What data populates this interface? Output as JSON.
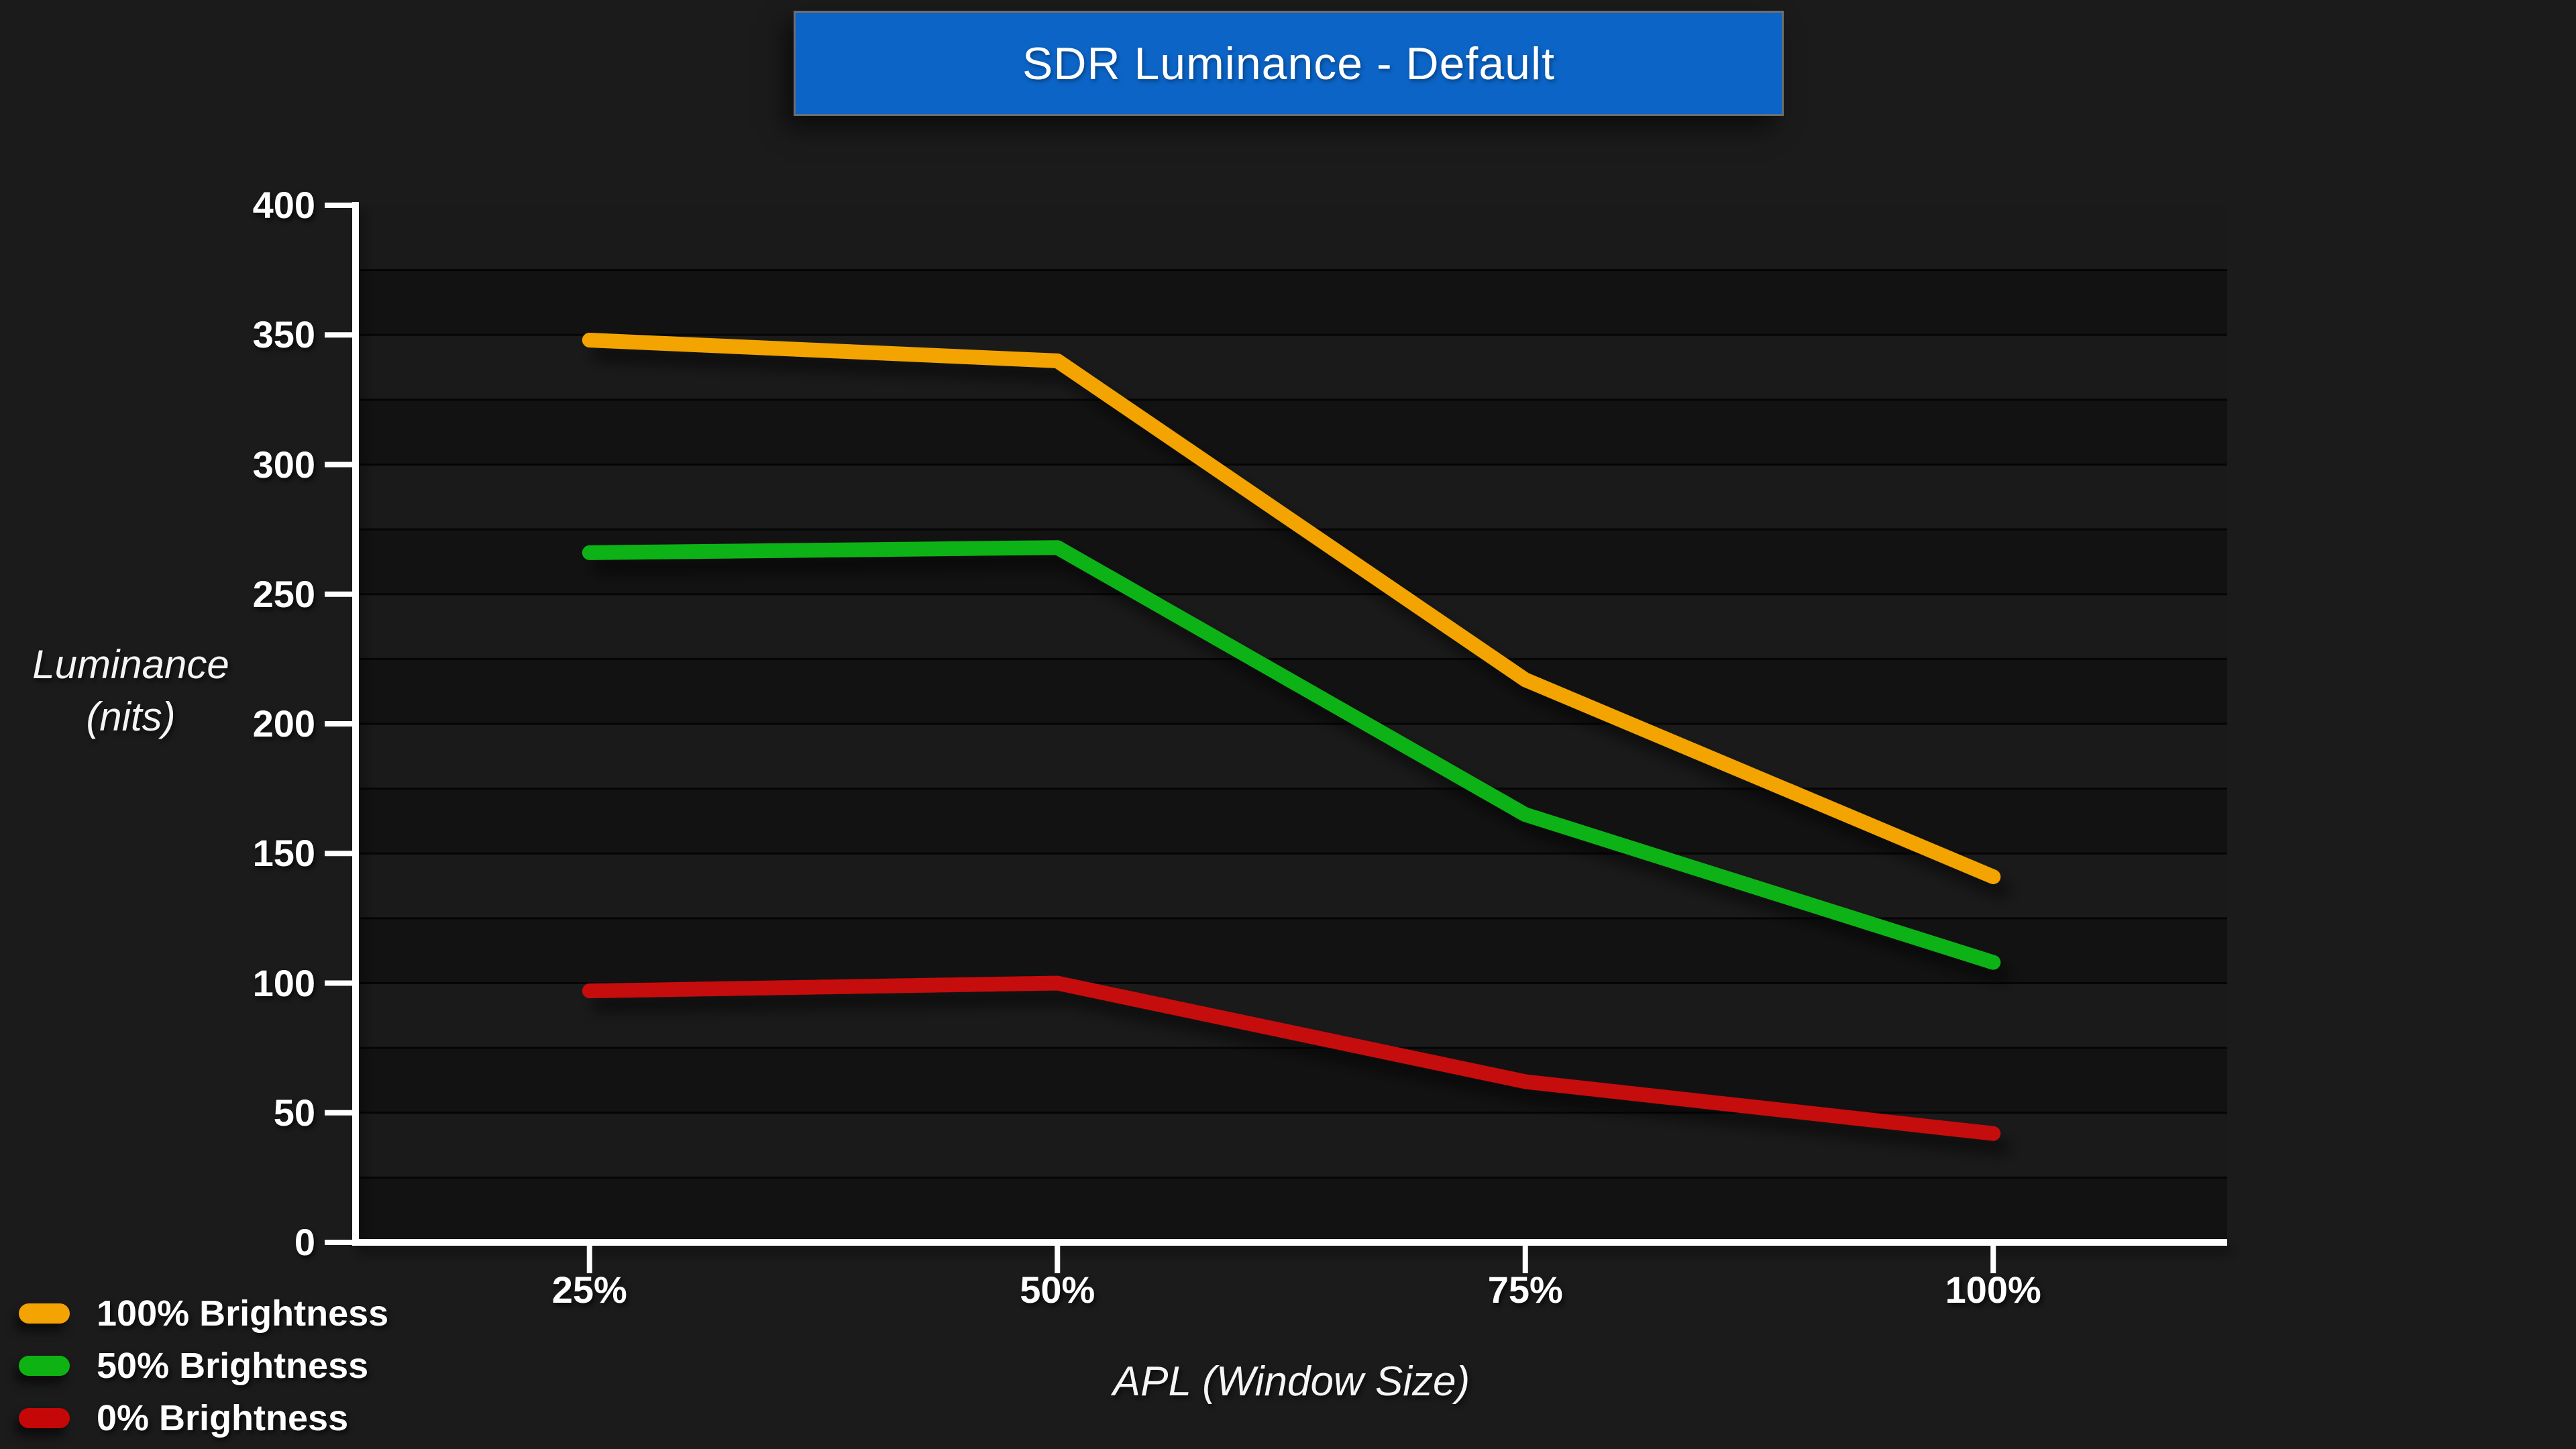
{
  "page": {
    "background": "#1B1B1B"
  },
  "title_banner": {
    "text": "SDR Luminance - Default",
    "background": "#0B64C6",
    "border_color": "#6E6E6E",
    "text_color": "#FFFFFF"
  },
  "chart_data": {
    "type": "line",
    "title": "SDR Luminance - Default",
    "categories": [
      "25%",
      "50%",
      "75%",
      "100%"
    ],
    "series": [
      {
        "name": "100% Brightness",
        "color": "#F3A403",
        "values": [
          348,
          340,
          217,
          141
        ]
      },
      {
        "name": "50% Brightness",
        "color": "#0EB212",
        "values": [
          266,
          268,
          165,
          108
        ]
      },
      {
        "name": "0% Brightness",
        "color": "#C50707",
        "values": [
          97,
          100,
          62,
          42
        ]
      }
    ],
    "xlabel": "APL (Window Size)",
    "ylabel_lines": [
      "Luminance",
      "(nits)"
    ],
    "ylim": [
      0,
      400
    ],
    "yticks": [
      0,
      50,
      100,
      150,
      200,
      250,
      300,
      350,
      400
    ],
    "minor_grid_step": 25,
    "grid": "horizontal-bands",
    "legend_position": "bottom-left",
    "colors": {
      "band_light": "#1A1A1A",
      "band_dark": "#121212",
      "gridline": "#050505",
      "axis": "#FFFFFF",
      "tick_text": "#FFFFFF"
    }
  }
}
